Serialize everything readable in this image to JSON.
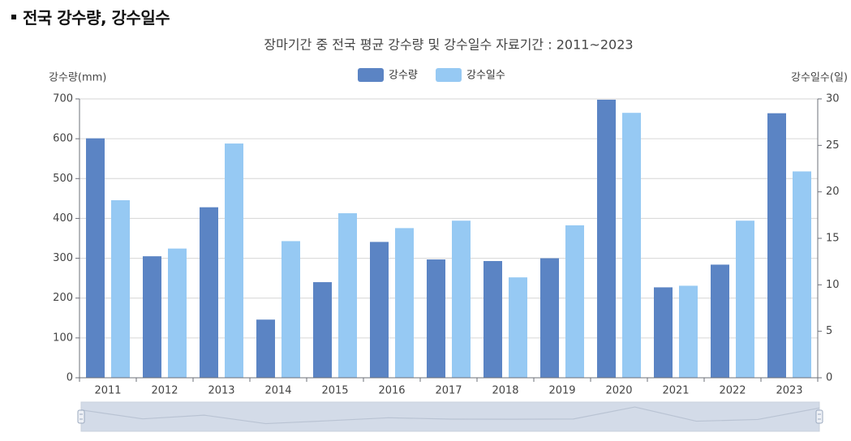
{
  "page": {
    "heading": "전국 강수량, 강수일수"
  },
  "chart_data": {
    "type": "bar",
    "title": "장마기간 중 전국 평균 강수량 및 강수일수 자료기간 : 2011~2023",
    "categories": [
      "2011",
      "2012",
      "2013",
      "2014",
      "2015",
      "2016",
      "2017",
      "2018",
      "2019",
      "2020",
      "2021",
      "2022",
      "2023"
    ],
    "series": [
      {
        "name": "강수량",
        "axis": "left",
        "color": "#5b84c4",
        "values": [
          601,
          305,
          428,
          146,
          240,
          341,
          297,
          293,
          300,
          698,
          227,
          284,
          664
        ]
      },
      {
        "name": "강수일수",
        "axis": "right",
        "color": "#96c9f3",
        "values": [
          19.1,
          13.9,
          25.2,
          14.7,
          17.7,
          16.1,
          16.9,
          10.8,
          16.4,
          28.5,
          9.9,
          16.9,
          22.2
        ]
      }
    ],
    "ylabel_left": "강수량(mm)",
    "ylabel_right": "강수일수(일)",
    "ylim_left": [
      0,
      700
    ],
    "yticks_left": [
      0,
      100,
      200,
      300,
      400,
      500,
      600,
      700
    ],
    "ylim_right": [
      0,
      30
    ],
    "yticks_right": [
      0,
      5,
      10,
      15,
      20,
      25,
      30
    ],
    "grid": true,
    "legend": "top-center"
  }
}
